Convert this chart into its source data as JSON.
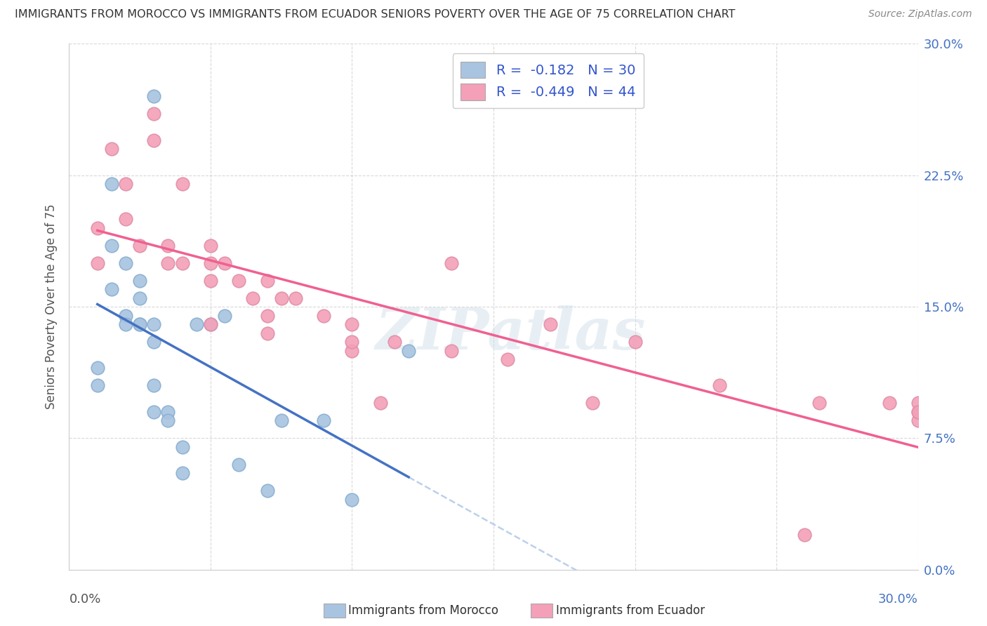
{
  "title": "IMMIGRANTS FROM MOROCCO VS IMMIGRANTS FROM ECUADOR SENIORS POVERTY OVER THE AGE OF 75 CORRELATION CHART",
  "source": "Source: ZipAtlas.com",
  "ylabel": "Seniors Poverty Over the Age of 75",
  "ytick_labels": [
    "0.0%",
    "7.5%",
    "15.0%",
    "22.5%",
    "30.0%"
  ],
  "ytick_values": [
    0.0,
    0.075,
    0.15,
    0.225,
    0.3
  ],
  "xlim": [
    0.0,
    0.3
  ],
  "ylim": [
    0.0,
    0.3
  ],
  "morocco_color": "#a8c4e0",
  "ecuador_color": "#f4a0b8",
  "morocco_line_color": "#4472c4",
  "ecuador_line_color": "#f06090",
  "dashed_line_color": "#b0c8e8",
  "legend_label_morocco": "Immigrants from Morocco",
  "legend_label_ecuador": "Immigrants from Ecuador",
  "watermark": "ZIPatlas",
  "morocco_x": [
    0.01,
    0.01,
    0.015,
    0.015,
    0.015,
    0.02,
    0.02,
    0.02,
    0.025,
    0.025,
    0.025,
    0.025,
    0.03,
    0.03,
    0.03,
    0.03,
    0.03,
    0.035,
    0.035,
    0.04,
    0.04,
    0.045,
    0.05,
    0.055,
    0.06,
    0.07,
    0.075,
    0.09,
    0.1,
    0.12
  ],
  "morocco_y": [
    0.115,
    0.105,
    0.22,
    0.185,
    0.16,
    0.145,
    0.14,
    0.175,
    0.165,
    0.155,
    0.14,
    0.14,
    0.27,
    0.14,
    0.13,
    0.105,
    0.09,
    0.09,
    0.085,
    0.07,
    0.055,
    0.14,
    0.14,
    0.145,
    0.06,
    0.045,
    0.085,
    0.085,
    0.04,
    0.125
  ],
  "ecuador_x": [
    0.01,
    0.01,
    0.015,
    0.02,
    0.02,
    0.025,
    0.03,
    0.03,
    0.035,
    0.035,
    0.04,
    0.04,
    0.05,
    0.05,
    0.05,
    0.05,
    0.055,
    0.06,
    0.065,
    0.07,
    0.07,
    0.07,
    0.075,
    0.08,
    0.09,
    0.1,
    0.1,
    0.1,
    0.11,
    0.115,
    0.135,
    0.135,
    0.155,
    0.17,
    0.185,
    0.2,
    0.23,
    0.265,
    0.29,
    0.3,
    0.3,
    0.3,
    0.3,
    0.26
  ],
  "ecuador_y": [
    0.195,
    0.175,
    0.24,
    0.22,
    0.2,
    0.185,
    0.26,
    0.245,
    0.185,
    0.175,
    0.22,
    0.175,
    0.185,
    0.165,
    0.175,
    0.14,
    0.175,
    0.165,
    0.155,
    0.145,
    0.165,
    0.135,
    0.155,
    0.155,
    0.145,
    0.14,
    0.125,
    0.13,
    0.095,
    0.13,
    0.175,
    0.125,
    0.12,
    0.14,
    0.095,
    0.13,
    0.105,
    0.095,
    0.095,
    0.085,
    0.09,
    0.095,
    0.09,
    0.02
  ]
}
